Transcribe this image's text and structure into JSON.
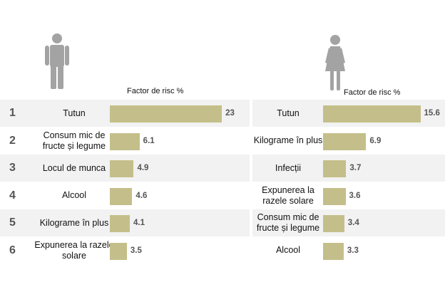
{
  "colors": {
    "bar": "#c4bf8a",
    "icon": "#a3a3a3",
    "stripe": "#f2f2f2"
  },
  "icons": {
    "left": "man-icon",
    "right": "woman-icon"
  },
  "chart_data": [
    {
      "type": "bar",
      "orientation": "horizontal",
      "title": "Factor de risc %",
      "icon": "man-icon",
      "ranks": [
        "1",
        "2",
        "3",
        "4",
        "5",
        "6"
      ],
      "categories": [
        "Tutun",
        "Consum mic de fructe și legume",
        "Locul de munca",
        "Alcool",
        "Kilograme în plus",
        "Expunerea la razele solare"
      ],
      "values": [
        23,
        6.1,
        4.9,
        4.6,
        4.1,
        3.5
      ],
      "value_labels": [
        "23",
        "6.1",
        "4.9",
        "4.6",
        "4.1",
        "3.5"
      ],
      "xlim": [
        0,
        24
      ]
    },
    {
      "type": "bar",
      "orientation": "horizontal",
      "title": "Factor de risc %",
      "icon": "woman-icon",
      "categories": [
        "Tutun",
        "Kilograme în plus",
        "Infecții",
        "Expunerea la razele solare",
        "Consum mic de fructe și legume",
        "Alcool"
      ],
      "values": [
        15.6,
        6.9,
        3.7,
        3.6,
        3.4,
        3.3
      ],
      "value_labels": [
        "15.6",
        "6.9",
        "3.7",
        "3.6",
        "3.4",
        "3.3"
      ],
      "xlim": [
        0,
        16
      ]
    }
  ]
}
